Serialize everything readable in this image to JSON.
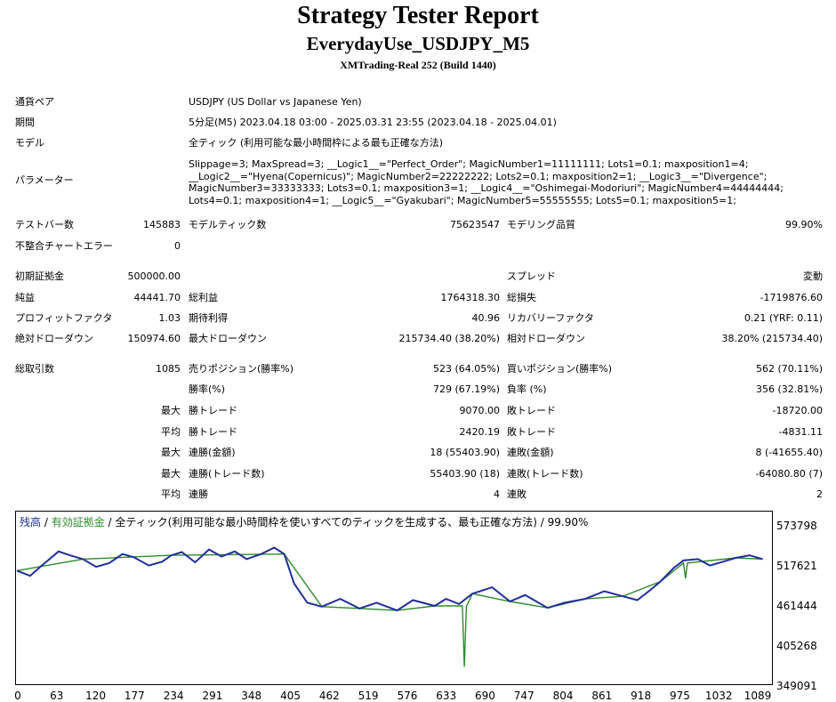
{
  "header": {
    "title": "Strategy Tester Report",
    "ea_name": "EverydayUse_USDJPY_M5",
    "server": "XMTrading-Real 252 (Build 1440)"
  },
  "info": {
    "pair_label": "通貨ペア",
    "pair_value": "USDJPY (US Dollar vs Japanese Yen)",
    "period_label": "期間",
    "period_value": "5分足(M5) 2023.04.18 03:00 - 2025.03.31 23:55 (2023.04.18 - 2025.04.01)",
    "model_label": "モデル",
    "model_value": "全ティック (利用可能な最小時間枠による最も正確な方法)",
    "params_label": "パラメーター",
    "params_value": "Slippage=3; MaxSpread=3; __Logic1__=\"Perfect_Order\"; MagicNumber1=11111111; Lots1=0.1; maxposition1=4; __Logic2__=\"Hyena(Copernicus)\"; MagicNumber2=22222222; Lots2=0.1; maxposition2=1; __Logic3__=\"Divergence\"; MagicNumber3=33333333; Lots3=0.1; maxposition3=1; __Logic4__=\"Oshimegai-Modoriuri\"; MagicNumber4=44444444; Lots4=0.1; maxposition4=1; __Logic5__=\"Gyakubari\"; MagicNumber5=55555555; Lots5=0.1; maxposition5=1;"
  },
  "stats": {
    "bars_label": "テストバー数",
    "bars_value": "145883",
    "ticks_label": "モデルティック数",
    "ticks_value": "75623547",
    "quality_label": "モデリング品質",
    "quality_value": "99.90%",
    "errors_label": "不整合チャートエラー",
    "errors_value": "0",
    "deposit_label": "初期証拠金",
    "deposit_value": "500000.00",
    "spread_label": "スプレッド",
    "spread_value": "変動",
    "net_label": "純益",
    "net_value": "44441.70",
    "gross_profit_label": "総利益",
    "gross_profit_value": "1764318.30",
    "gross_loss_label": "総損失",
    "gross_loss_value": "-1719876.60",
    "pf_label": "プロフィットファクタ",
    "pf_value": "1.03",
    "expected_label": "期待利得",
    "expected_value": "40.96",
    "recovery_label": "リカバリーファクタ",
    "recovery_value": "0.21 (YRF: 0.11)",
    "abs_dd_label": "絶対ドローダウン",
    "abs_dd_value": "150974.60",
    "max_dd_label": "最大ドローダウン",
    "max_dd_value": "215734.40 (38.20%)",
    "rel_dd_label": "相対ドローダウン",
    "rel_dd_value": "38.20% (215734.40)",
    "trades_label": "総取引数",
    "trades_value": "1085",
    "short_label": "売りポジション(勝率%)",
    "short_value": "523 (64.05%)",
    "long_label": "買いポジション(勝率%)",
    "long_value": "562 (70.11%)",
    "win_rate_label": "勝率(%)",
    "win_rate_value": "729 (67.19%)",
    "loss_rate_label": "負率 (%)",
    "loss_rate_value": "356 (32.81%)",
    "max_label": "最大",
    "avg_label": "平均",
    "win_trade_label": "勝トレード",
    "loss_trade_label": "敗トレード",
    "largest_win_value": "9070.00",
    "largest_loss_value": "-18720.00",
    "avg_win_value": "2420.19",
    "avg_loss_value": "-4831.11",
    "consec_wins_amount_label": "連勝(金額)",
    "consec_wins_amount_value": "18 (55403.90)",
    "consec_losses_amount_label": "連敗(金額)",
    "consec_losses_amount_value": "8 (-41655.40)",
    "consec_wins_trades_label": "連勝(トレード数)",
    "consec_wins_trades_value": "55403.90 (18)",
    "consec_losses_trades_label": "連敗(トレード数)",
    "consec_losses_trades_value": "-64080.80 (7)",
    "avg_consec_wins_label": "連勝",
    "avg_consec_wins_value": "4",
    "avg_consec_losses_label": "連敗",
    "avg_consec_losses_value": "2"
  },
  "chart_legend": {
    "balance": "残高",
    "sep1": " / ",
    "equity": "有効証拠金",
    "sep2": " / ",
    "model": "全ティック(利用可能な最小時間枠を使いすべてのティックを生成する、最も正確な方法) / 99.90%"
  },
  "chart_data": {
    "type": "line",
    "x_ticks": [
      "0",
      "63",
      "120",
      "177",
      "234",
      "291",
      "348",
      "405",
      "462",
      "519",
      "576",
      "633",
      "690",
      "747",
      "804",
      "861",
      "918",
      "975",
      "1032",
      "1089"
    ],
    "y_ticks": [
      "573798",
      "517621",
      "461444",
      "405268",
      "349091"
    ],
    "xlim": [
      0,
      1140
    ],
    "ylim": [
      349091,
      585000
    ],
    "series": [
      {
        "name": "残高",
        "color": "#1f2f9a",
        "x": [
          0,
          20,
          40,
          63,
          80,
          100,
          120,
          140,
          160,
          177,
          200,
          220,
          234,
          250,
          270,
          291,
          310,
          330,
          348,
          370,
          390,
          405,
          420,
          440,
          462,
          490,
          519,
          545,
          576,
          600,
          633,
          650,
          670,
          690,
          720,
          747,
          770,
          804,
          830,
          861,
          890,
          918,
          940,
          960,
          975,
          995,
          1010,
          1032,
          1050,
          1070,
          1089,
          1110,
          1130
        ],
        "y": [
          522000,
          514000,
          532000,
          552000,
          546000,
          540000,
          528000,
          534000,
          548000,
          543000,
          530000,
          536000,
          546000,
          551000,
          535000,
          555000,
          544000,
          552000,
          540000,
          548000,
          558000,
          548000,
          502000,
          472000,
          466000,
          478000,
          463000,
          472000,
          460000,
          476000,
          467000,
          478000,
          470000,
          486000,
          496000,
          474000,
          484000,
          464000,
          472000,
          478000,
          490000,
          482000,
          476000,
          492000,
          505000,
          526000,
          538000,
          540000,
          530000,
          536000,
          542000,
          546000,
          540000
        ]
      },
      {
        "name": "有効証拠金",
        "color": "#2e8b2e",
        "x": [
          0,
          100,
          234,
          405,
          462,
          519,
          576,
          633,
          675,
          678,
          681,
          690,
          747,
          804,
          861,
          918,
          975,
          1010,
          1013,
          1016,
          1089,
          1130
        ],
        "y": [
          522000,
          540000,
          546000,
          548000,
          466000,
          463000,
          460000,
          467000,
          467000,
          372000,
          466000,
          486000,
          474000,
          464000,
          478000,
          482000,
          505000,
          534000,
          510000,
          534000,
          542000,
          540000
        ]
      }
    ]
  }
}
